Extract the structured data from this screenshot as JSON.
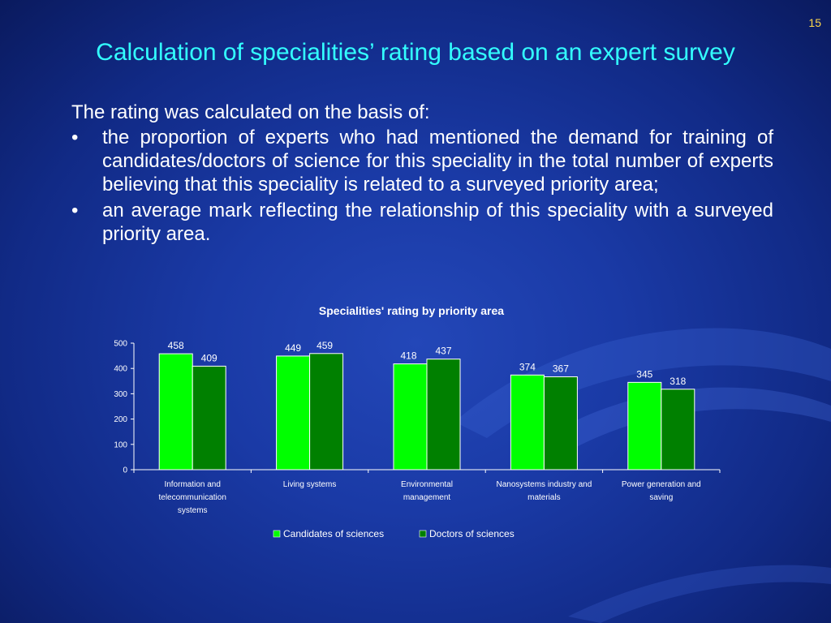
{
  "slide": {
    "number": "15",
    "title": "Calculation of specialities’ rating based on an expert survey",
    "intro": "The rating was calculated on the basis of:",
    "bullet_symbol": "•",
    "bullets": [
      "the proportion of experts who had mentioned the demand for training of candidates/doctors of science for this speciality in the total number of experts believing that this speciality is related to a surveyed priority area;",
      "an average mark reflecting the relationship of this speciality with a surveyed priority area."
    ]
  },
  "colors": {
    "title": "#33ffff",
    "slide_number": "#ffd84a",
    "candidates": "#00ff00",
    "doctors": "#008000",
    "bar_stroke": "#ffffff"
  },
  "chart_data": {
    "type": "bar",
    "title": "Specialities' rating by priority area",
    "xlabel": "",
    "ylabel": "",
    "ylim": [
      0,
      500
    ],
    "yticks": [
      0,
      100,
      200,
      300,
      400,
      500
    ],
    "grid": false,
    "legend_position": "bottom",
    "categories": [
      [
        "Information and",
        "telecommunication",
        "systems"
      ],
      [
        "Living systems"
      ],
      [
        "Environmental",
        "management"
      ],
      [
        "Nanosystems industry and",
        "materials"
      ],
      [
        "Power generation and",
        "saving"
      ]
    ],
    "series": [
      {
        "name": "Candidates of sciences",
        "color": "#00ff00",
        "values": [
          458,
          449,
          418,
          374,
          345
        ]
      },
      {
        "name": "Doctors of sciences",
        "color": "#008000",
        "values": [
          409,
          459,
          437,
          367,
          318
        ]
      }
    ]
  }
}
